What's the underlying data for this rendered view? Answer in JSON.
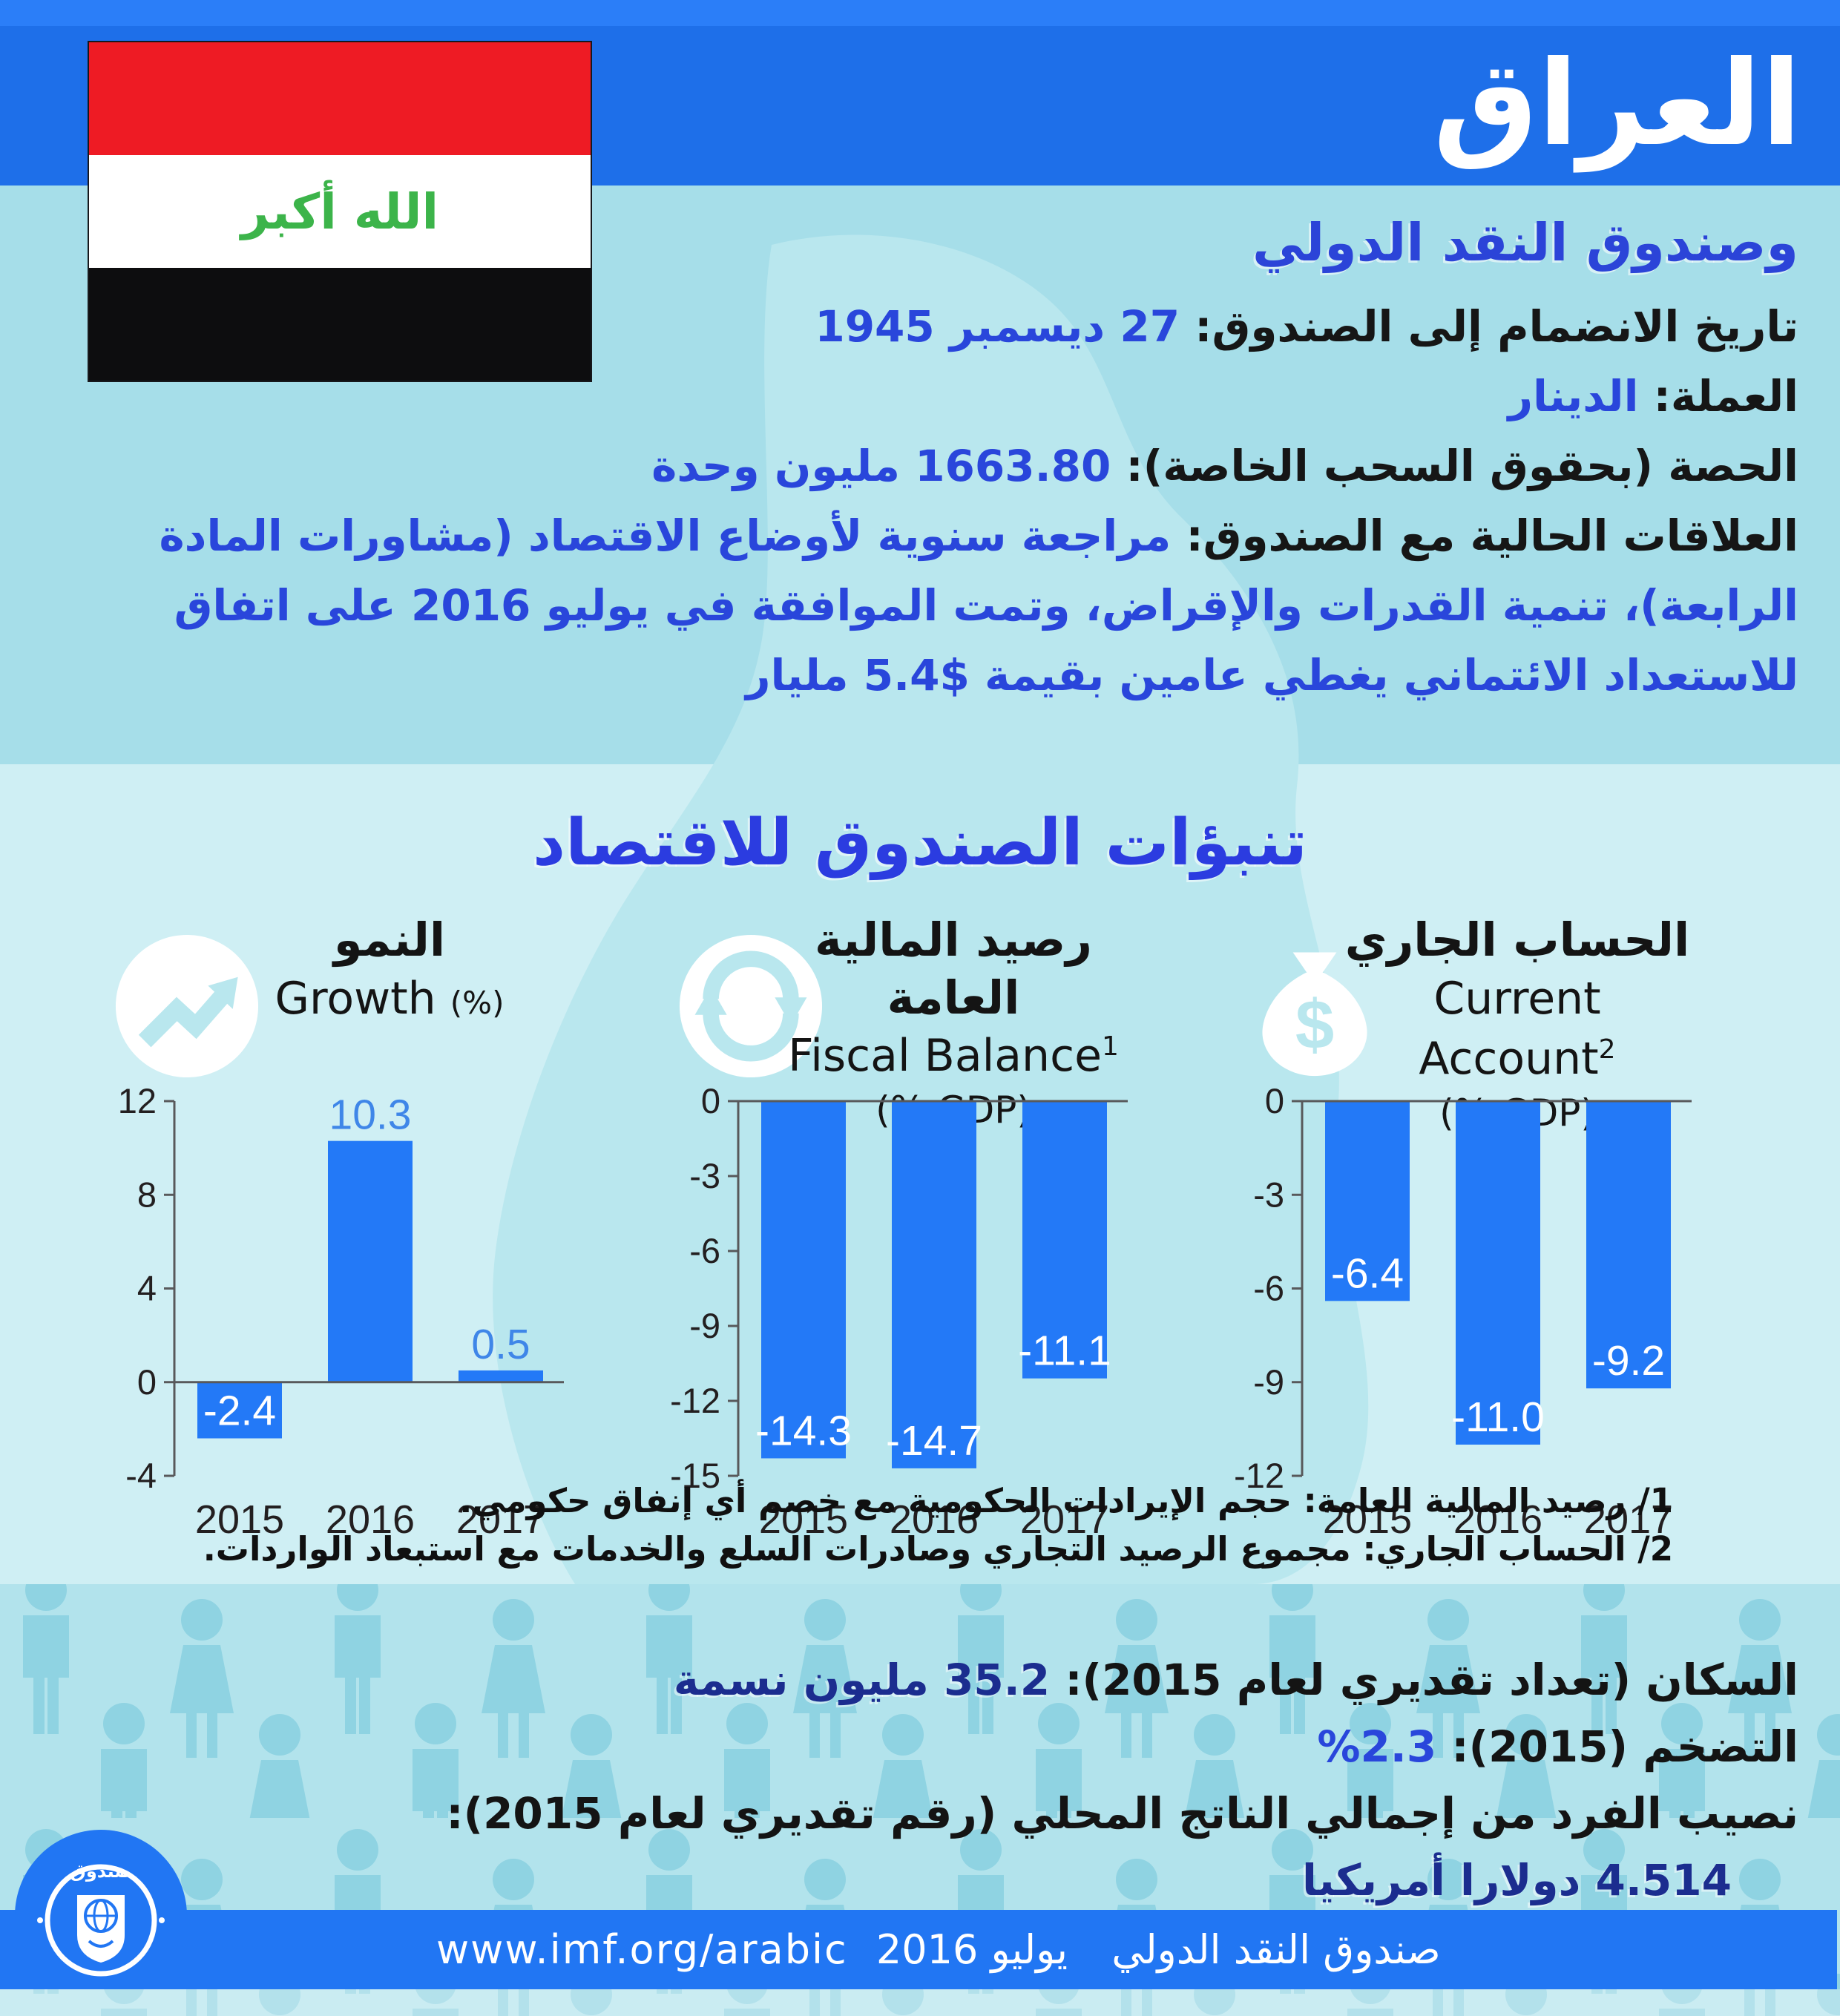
{
  "header": {
    "country": "العراق"
  },
  "flag": {
    "takbir": "الله أكبر"
  },
  "info": {
    "title": "وصندوق النقد الدولي",
    "lines": [
      {
        "label": "تاريخ الانضمام إلى الصندوق:",
        "value": "27 ديسمبر 1945"
      },
      {
        "label": "العملة:",
        "value": "الدينار"
      },
      {
        "label": "الحصة (بحقوق السحب الخاصة):",
        "value": "1663.80 مليون وحدة"
      },
      {
        "label": "العلاقات الحالية مع الصندوق:",
        "value": "مراجعة سنوية لأوضاع الاقتصاد (مشاورات المادة الرابعة)، تنمية القدرات والإقراض، وتمت الموافقة في يوليو 2016 على اتفاق للاستعداد الائتماني يغطي عامين بقيمة $5.4 مليار"
      }
    ]
  },
  "forecast_title": "تنبؤات الصندوق للاقتصاد",
  "chart_data": [
    {
      "type": "bar",
      "title_ar": "النمو",
      "title_en": "Growth",
      "title_sup": "",
      "unit": "(%)",
      "unit_inline": true,
      "icon": "trend-up",
      "categories": [
        "2015",
        "2016",
        "2017"
      ],
      "values": [
        -2.4,
        10.3,
        0.5
      ],
      "ylim": [
        -4,
        12
      ],
      "yticks": [
        12,
        8,
        4,
        0,
        -4
      ],
      "legend": "none",
      "grid": "off"
    },
    {
      "type": "bar",
      "title_ar": "رصيد المالية العامة",
      "title_en": "Fiscal Balance",
      "title_sup": "1",
      "unit": "(% GDP)",
      "unit_inline": false,
      "icon": "refresh",
      "categories": [
        "2015",
        "2016",
        "2017"
      ],
      "values": [
        -14.3,
        -14.7,
        -11.1
      ],
      "ylim": [
        -15,
        0
      ],
      "yticks": [
        0,
        -3,
        -6,
        -9,
        -12,
        -15
      ],
      "legend": "none",
      "grid": "off"
    },
    {
      "type": "bar",
      "title_ar": "الحساب الجاري",
      "title_en": "Current Account",
      "title_sup": "2",
      "unit": "(% GDP)",
      "unit_inline": false,
      "icon": "money-bag",
      "categories": [
        "2015",
        "2016",
        "2017"
      ],
      "values": [
        -6.4,
        -11.0,
        -9.2
      ],
      "ylim": [
        -12,
        0
      ],
      "yticks": [
        0,
        -3,
        -6,
        -9,
        -12
      ],
      "legend": "none",
      "grid": "off"
    }
  ],
  "footnotes": [
    "1/ رصيد المالية العامة: حجم الإيرادات الحكومية مع خصم أي إنفاق حكومي.",
    "2/ الحساب الجاري: مجموع الرصيد التجاري وصادرات السلع والخدمات مع استبعاد الواردات."
  ],
  "stats": {
    "lines": [
      {
        "label": "السكان (تعداد تقديري لعام 2015):",
        "value": "35.2 مليون نسمة",
        "strong": true,
        "indent": false
      },
      {
        "label": "التضخم (2015):",
        "value": "2.3%",
        "strong": false,
        "indent": false
      },
      {
        "label": "نصيب الفرد من إجمالي الناتج المحلي (رقم تقديري لعام 2015):",
        "value": "",
        "strong": false,
        "indent": false
      },
      {
        "label": "",
        "value": "4.514 دولارا أمريكيا",
        "strong": true,
        "indent": true
      }
    ]
  },
  "footer": {
    "org": "صندوق النقد الدولي",
    "date": "يوليو 2016",
    "url": "www.imf.org/arabic"
  },
  "colors": {
    "band_blue": "#1e6fe9",
    "band_blue_light": "#2b7ef8",
    "bar_blue": "#2379f7",
    "label_blue": "#3f86e8",
    "value_blue": "#2946db",
    "title_blue": "#2b3ce0",
    "title_blue2": "#2b44d8",
    "navy": "#1b2d8f",
    "bg_upper": "#a6dee9",
    "bg_lower": "#cfeff4",
    "map": "#b9e7ee",
    "people_bg": "#b2e3ec",
    "people_fg": "#8fd3e2",
    "axis": "#58595b",
    "text_dark": "#231f20",
    "footer_blue": "#2176f3",
    "flag_red": "#ee1b24",
    "flag_green": "#3cb44a",
    "white": "#ffffff"
  }
}
